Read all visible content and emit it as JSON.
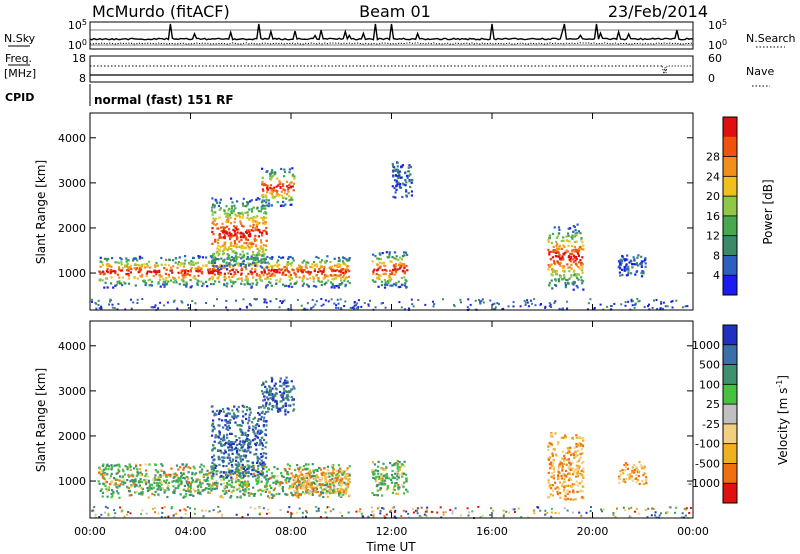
{
  "header": {
    "station": "McMurdo (fitACF)",
    "beam": "Beam 01",
    "date": "23/Feb/2014"
  },
  "top_panels": {
    "nsky_label": "N.Sky",
    "nsky_hi": "10^5",
    "nsky_lo": "10^0",
    "nsearch_label": "N.Search",
    "nsearch_hi": "10^5",
    "nsearch_lo": "10^0",
    "freq_label": "Freq.",
    "freq_unit": "[MHz]",
    "freq_hi": "18",
    "freq_lo": "8",
    "nave_label": "Nave",
    "nave_hi": "60",
    "nave_lo": "0",
    "cpid_label": "CPID",
    "cpid_text": "normal (fast) 151 RF"
  },
  "chart_data": [
    {
      "type": "heatmap",
      "name": "power",
      "ylabel": "Slant Range [km]",
      "ylim": [
        180,
        4550
      ],
      "yticks": [
        "1000",
        "2000",
        "3000",
        "4000"
      ],
      "xlim": [
        0,
        24
      ],
      "xticks": [
        "00:00",
        "04:00",
        "08:00",
        "12:00",
        "16:00",
        "20:00",
        "00:00"
      ],
      "colorbar": {
        "label": "Power [dB]",
        "ticks": [
          "4",
          "8",
          "12",
          "16",
          "20",
          "24",
          "28"
        ],
        "colors": [
          "#1c1cf0",
          "#2c5fc0",
          "#3a8a68",
          "#48a850",
          "#8fc848",
          "#f0c020",
          "#f09018",
          "#f05010",
          "#e01010"
        ]
      },
      "features": [
        {
          "t": [
            0.3,
            10.3
          ],
          "r": [
            700,
            1400
          ],
          "core": true
        },
        {
          "t": [
            4.8,
            7.0
          ],
          "r": [
            1100,
            2700
          ],
          "core": true
        },
        {
          "t": [
            6.8,
            8.1
          ],
          "r": [
            2500,
            3350
          ],
          "core": true
        },
        {
          "t": [
            11.2,
            12.6
          ],
          "r": [
            700,
            1500
          ],
          "core": true
        },
        {
          "t": [
            18.2,
            19.6
          ],
          "r": [
            650,
            2100
          ],
          "core": true
        },
        {
          "t": [
            21.0,
            22.1
          ],
          "r": [
            950,
            1450
          ],
          "core": false
        },
        {
          "t": [
            12.0,
            12.8
          ],
          "r": [
            2700,
            3500
          ],
          "core": false
        }
      ]
    },
    {
      "type": "heatmap",
      "name": "velocity",
      "ylabel": "Slant Range [km]",
      "ylim": [
        180,
        4550
      ],
      "yticks": [
        "1000",
        "2000",
        "3000",
        "4000"
      ],
      "xlim": [
        0,
        24
      ],
      "xticks": [
        "00:00",
        "04:00",
        "08:00",
        "12:00",
        "16:00",
        "20:00",
        "00:00"
      ],
      "xlabel": "Time UT",
      "colorbar": {
        "label": "Velocity [m s^-1]",
        "ticks": [
          "1000",
          "500",
          "100",
          "25",
          "-25",
          "-100",
          "-500",
          "-1000"
        ],
        "colors": [
          "#2030c0",
          "#3a70a8",
          "#3f8f70",
          "#48c040",
          "#c0c0c0",
          "#f0d080",
          "#f0b020",
          "#f07010",
          "#e01010"
        ]
      },
      "features": [
        {
          "t": [
            0.3,
            10.3
          ],
          "r": [
            650,
            1400
          ],
          "tone": "mixed"
        },
        {
          "t": [
            4.8,
            7.0
          ],
          "r": [
            1100,
            2700
          ],
          "tone": "blue"
        },
        {
          "t": [
            6.8,
            8.1
          ],
          "r": [
            2500,
            3350
          ],
          "tone": "blue"
        },
        {
          "t": [
            8.0,
            10.3
          ],
          "r": [
            700,
            1300
          ],
          "tone": "orange"
        },
        {
          "t": [
            11.2,
            12.6
          ],
          "r": [
            700,
            1500
          ],
          "tone": "mixed"
        },
        {
          "t": [
            18.2,
            19.6
          ],
          "r": [
            600,
            2100
          ],
          "tone": "orange"
        },
        {
          "t": [
            21.0,
            22.1
          ],
          "r": [
            950,
            1450
          ],
          "tone": "orange"
        }
      ]
    }
  ]
}
